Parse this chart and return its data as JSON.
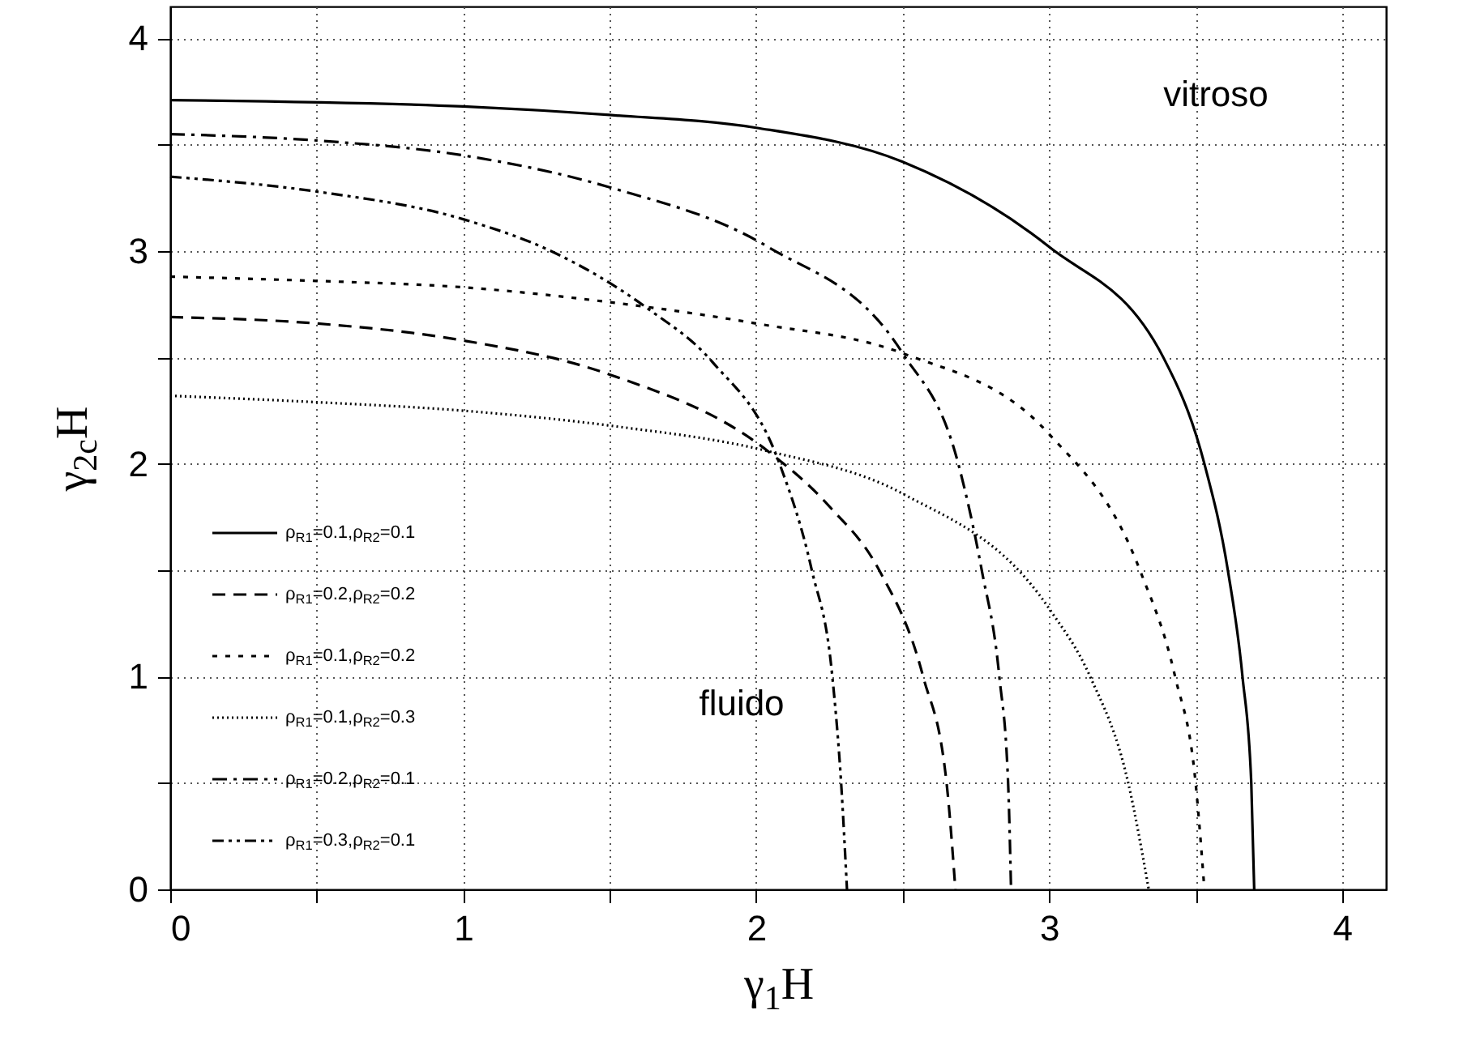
{
  "chart_data": {
    "type": "line",
    "xlabel": "γ$_{1}$H",
    "ylabel": "γ$_{2c}$H",
    "xlim": [
      0,
      4.15
    ],
    "ylim": [
      0,
      4.15
    ],
    "xticks": [
      0,
      {
        "value": 0.5,
        "label": null
      },
      1,
      {
        "value": 1.5,
        "label": null
      },
      2,
      {
        "value": 2.5,
        "label": null
      },
      3,
      {
        "value": 3.5,
        "label": null
      },
      4
    ],
    "yticks": [
      0,
      {
        "value": 0.5,
        "label": null
      },
      1,
      {
        "value": 1.5,
        "label": null
      },
      2,
      {
        "value": 2.5,
        "label": null
      },
      3,
      {
        "value": 3.5,
        "label": null
      },
      4
    ],
    "grid": true,
    "legend": "bottom left",
    "annotations": [
      "vitroso",
      "fluido"
    ],
    "series": [
      {
        "name": "ρ$_{R1}$=0.1,ρ$_{R2}$=0.1",
        "color": "#000000",
        "line_style": "solid",
        "x": [
          0,
          1,
          1.5,
          2,
          2.5,
          3,
          3.39,
          3.53,
          3.61,
          3.66,
          3.69,
          3.7
        ],
        "values": [
          3.71,
          3.68,
          3.64,
          3.58,
          3.42,
          3.02,
          2.5,
          2,
          1.5,
          1,
          0.5,
          0
        ]
      },
      {
        "name": "ρ$_{R1}$=0.2,ρ$_{R2}$=0.2",
        "color": "#000000",
        "line_style": "dashed",
        "x": [
          0,
          0.5,
          1,
          1.5,
          2.04,
          2.25,
          2.42,
          2.57,
          2.65,
          2.68
        ],
        "values": [
          2.69,
          2.66,
          2.58,
          2.42,
          2.06,
          1.8,
          1.5,
          1,
          0.5,
          0
        ]
      },
      {
        "name": "ρ$_{R1}$=0.1,ρ$_{R2}$=0.2",
        "color": "#000000",
        "line_style": "dotted",
        "x": [
          0,
          0.5,
          1,
          1.5,
          2,
          2.5,
          3,
          3.31,
          3.43,
          3.5,
          3.53
        ],
        "values": [
          2.88,
          2.86,
          2.83,
          2.76,
          2.66,
          2.52,
          2.14,
          1.5,
          1,
          0.5,
          0
        ]
      },
      {
        "name": "ρ$_{R1}$=0.1,ρ$_{R2}$=0.3",
        "color": "#000000",
        "line_style": "densedot",
        "x": [
          0,
          0.5,
          1,
          1.5,
          2.04,
          2.5,
          3,
          3.14,
          3.27,
          3.34
        ],
        "values": [
          2.32,
          2.29,
          2.25,
          2.18,
          2.06,
          1.86,
          1.32,
          1,
          0.5,
          0
        ]
      },
      {
        "name": "ρ$_{R1}$=0.2,ρ$_{R2}$=0.1",
        "color": "#000000",
        "line_style": "dashdot",
        "x": [
          0,
          0.5,
          1,
          1.5,
          2.04,
          2.5,
          2.69,
          2.77,
          2.83,
          2.86,
          2.87
        ],
        "values": [
          3.55,
          3.52,
          3.45,
          3.3,
          3.02,
          2.52,
          2,
          1.5,
          1,
          0.5,
          0
        ]
      },
      {
        "name": "ρ$_{R1}$=0.3,ρ$_{R2}$=0.1",
        "color": "#000000",
        "line_style": "dashdotdot",
        "x": [
          0,
          0.5,
          1,
          1.3,
          1.63,
          1.85,
          2.08,
          2.19,
          2.26,
          2.29,
          2.31
        ],
        "values": [
          3.35,
          3.28,
          3.15,
          3.0,
          2.73,
          2.48,
          2,
          1.5,
          1,
          0.5,
          0
        ]
      }
    ]
  }
}
